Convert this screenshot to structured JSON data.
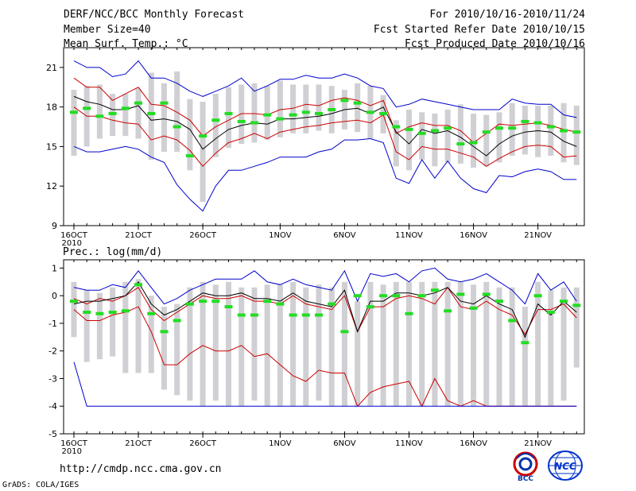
{
  "header": {
    "title": "DERF/NCC/BCC Monthly Forecast",
    "member": "Member Size=40",
    "variable": "Mean Surf. Temp.: °C",
    "period": "For 2010/10/16-2010/11/24",
    "started": "Fcst Started Refer Date 2010/10/15",
    "produced": "Fcst Produced Date 2010/10/16"
  },
  "footer": {
    "url": "http://cmdp.ncc.cma.gov.cn",
    "grads": "GrADS: COLA/IGES",
    "logo_left_text": "BCC",
    "logo_right_text": "NCC"
  },
  "colors": {
    "max_min": "#0000cc",
    "spread": "#cc0000",
    "mean": "#000000",
    "bar": "#d0d0d4",
    "obs": "#22dd22"
  },
  "chart_data": [
    {
      "type": "line",
      "title": "Mean Surf. Temp.: °C",
      "x_tick_labels": [
        "16OCT\n2010",
        "21OCT",
        "26OCT",
        "1NOV",
        "6NOV",
        "11NOV",
        "16NOV",
        "21NOV"
      ],
      "x_tick_days": [
        1,
        6,
        11,
        17,
        22,
        27,
        32,
        37
      ],
      "n_days": 40,
      "ylim": [
        9,
        22.5
      ],
      "yticks": [
        9,
        12,
        15,
        18,
        21
      ],
      "series": [
        {
          "name": "max",
          "values": [
            21.5,
            21.0,
            21.0,
            20.3,
            20.5,
            21.5,
            20.2,
            20.2,
            19.8,
            19.2,
            18.8,
            19.2,
            19.6,
            20.2,
            19.2,
            19.6,
            20.1,
            20.1,
            20.4,
            20.2,
            20.2,
            20.5,
            20.2,
            19.6,
            19.4,
            18.0,
            18.2,
            18.6,
            18.4,
            18.2,
            18.0,
            17.8,
            17.8,
            17.8,
            18.6,
            18.3,
            18.2,
            18.2,
            17.4,
            17.2
          ]
        },
        {
          "name": "upper",
          "values": [
            20.2,
            19.5,
            19.5,
            18.5,
            19.0,
            19.5,
            18.2,
            18.1,
            17.6,
            17.0,
            15.8,
            16.5,
            17.0,
            17.5,
            17.5,
            17.4,
            17.8,
            17.9,
            18.2,
            18.1,
            18.5,
            18.7,
            18.5,
            18.1,
            18.5,
            16.0,
            16.5,
            16.8,
            16.6,
            16.6,
            16.2,
            15.3,
            16.0,
            16.7,
            16.6,
            16.7,
            16.8,
            16.6,
            16.3,
            16.1
          ]
        },
        {
          "name": "mean",
          "values": [
            18.8,
            18.4,
            18.2,
            17.8,
            17.8,
            18.1,
            17.0,
            17.1,
            16.9,
            16.3,
            14.8,
            15.6,
            16.3,
            16.6,
            16.8,
            16.7,
            17.1,
            17.1,
            17.2,
            17.3,
            17.5,
            17.8,
            17.9,
            17.5,
            18.0,
            16.1,
            15.2,
            16.3,
            16.0,
            16.2,
            15.7,
            15.0,
            14.3,
            15.2,
            15.8,
            16.1,
            16.2,
            16.1,
            15.4,
            15.0
          ]
        },
        {
          "name": "lower",
          "values": [
            18.0,
            17.3,
            17.3,
            17.0,
            16.8,
            16.7,
            15.5,
            15.8,
            15.5,
            14.7,
            13.5,
            14.5,
            15.3,
            15.6,
            16.0,
            15.6,
            16.1,
            16.3,
            16.5,
            16.6,
            16.8,
            16.9,
            17.0,
            16.8,
            17.4,
            14.6,
            14.0,
            15.0,
            14.8,
            14.8,
            14.5,
            14.2,
            13.5,
            14.1,
            14.6,
            15.0,
            15.1,
            15.0,
            14.2,
            14.3
          ]
        },
        {
          "name": "min",
          "values": [
            15.0,
            14.6,
            14.6,
            14.8,
            15.0,
            14.8,
            14.2,
            13.8,
            12.1,
            11.0,
            10.1,
            12.0,
            13.2,
            13.2,
            13.5,
            13.8,
            14.2,
            14.2,
            14.2,
            14.6,
            14.8,
            15.5,
            15.5,
            15.6,
            15.3,
            12.6,
            12.2,
            14.0,
            12.6,
            13.9,
            12.6,
            11.8,
            11.5,
            12.8,
            12.7,
            13.1,
            13.3,
            13.1,
            12.5,
            12.5
          ]
        }
      ],
      "obs": [
        17.6,
        17.9,
        17.3,
        17.5,
        17.9,
        18.3,
        17.5,
        18.3,
        16.5,
        14.3,
        15.8,
        17.0,
        17.5,
        16.9,
        16.8,
        17.4,
        17.1,
        17.4,
        17.6,
        17.5,
        17.8,
        18.5,
        18.3,
        17.6,
        17.5,
        16.5,
        16.3,
        16.0,
        16.2,
        16.4,
        15.2,
        15.3,
        16.1,
        16.4,
        16.4,
        16.9,
        16.8,
        16.5,
        16.2,
        16.1
      ],
      "bars_low": [
        14.3,
        15.0,
        15.6,
        15.8,
        15.8,
        15.6,
        14.0,
        14.6,
        14.6,
        13.2,
        10.8,
        14.2,
        14.9,
        15.2,
        15.3,
        15.5,
        15.7,
        16.0,
        16.0,
        16.2,
        16.0,
        16.3,
        16.1,
        15.6,
        16.0,
        13.5,
        13.2,
        14.0,
        13.5,
        13.8,
        13.7,
        13.4,
        13.5,
        13.8,
        14.3,
        14.4,
        14.2,
        14.3,
        13.8,
        13.6
      ],
      "bars_high": [
        19.3,
        19.6,
        19.7,
        19.0,
        19.0,
        19.4,
        20.6,
        19.8,
        20.7,
        18.6,
        18.4,
        19.0,
        19.5,
        19.7,
        19.8,
        19.6,
        20.0,
        19.7,
        19.7,
        19.7,
        19.6,
        19.3,
        19.8,
        19.6,
        18.9,
        17.0,
        17.8,
        17.6,
        17.5,
        17.8,
        18.2,
        17.5,
        17.4,
        17.6,
        18.3,
        18.1,
        18.1,
        18.1,
        18.3,
        18.1
      ]
    },
    {
      "type": "line",
      "title": "Prec.: log(mm/d)",
      "x_tick_labels": [
        "16OCT\n2010",
        "21OCT",
        "26OCT",
        "1NOV",
        "6NOV",
        "11NOV",
        "16NOV",
        "21NOV"
      ],
      "x_tick_days": [
        1,
        6,
        11,
        17,
        22,
        27,
        32,
        37
      ],
      "n_days": 40,
      "ylim": [
        -5,
        1.3
      ],
      "yticks": [
        -5,
        -4,
        -3,
        -2,
        -1,
        0,
        1
      ],
      "series": [
        {
          "name": "max",
          "values": [
            0.3,
            0.2,
            0.2,
            0.4,
            0.3,
            0.9,
            0.3,
            -0.3,
            -0.1,
            0.2,
            0.4,
            0.6,
            0.6,
            0.6,
            0.9,
            0.5,
            0.4,
            0.6,
            0.4,
            0.3,
            0.2,
            0.9,
            -0.2,
            0.8,
            0.7,
            0.8,
            0.5,
            0.9,
            1.0,
            0.6,
            0.5,
            0.6,
            0.8,
            0.5,
            0.2,
            -0.3,
            0.8,
            0.2,
            0.5,
            -0.2
          ]
        },
        {
          "name": "upper",
          "values": [
            -0.1,
            -0.3,
            -0.1,
            -0.2,
            0.0,
            0.3,
            -0.5,
            -0.9,
            -0.6,
            -0.3,
            0.0,
            -0.1,
            -0.1,
            0.0,
            -0.2,
            -0.2,
            -0.3,
            0.0,
            -0.3,
            -0.4,
            -0.5,
            0.0,
            -1.3,
            -0.4,
            -0.4,
            -0.1,
            0.0,
            -0.1,
            -0.3,
            0.3,
            -0.4,
            -0.5,
            -0.2,
            -0.5,
            -0.7,
            -1.4,
            -0.5,
            -0.5,
            -0.3,
            -0.8
          ]
        },
        {
          "name": "mean",
          "values": [
            -0.3,
            -0.2,
            -0.2,
            -0.1,
            0.0,
            0.5,
            -0.3,
            -0.7,
            -0.5,
            -0.2,
            0.1,
            0.0,
            0.0,
            0.1,
            -0.1,
            -0.1,
            -0.2,
            0.1,
            -0.2,
            -0.3,
            -0.4,
            0.2,
            -1.3,
            -0.2,
            -0.2,
            0.1,
            0.1,
            0.0,
            0.1,
            0.3,
            -0.2,
            -0.3,
            0.0,
            -0.3,
            -0.5,
            -1.5,
            -0.3,
            -0.7,
            -0.2,
            -0.6
          ]
        },
        {
          "name": "lower",
          "values": [
            -0.5,
            -0.9,
            -0.9,
            -0.7,
            -0.6,
            -0.4,
            -1.3,
            -2.5,
            -2.5,
            -2.1,
            -1.8,
            -2.0,
            -2.0,
            -1.8,
            -2.2,
            -2.1,
            -2.5,
            -2.9,
            -3.1,
            -2.7,
            -2.8,
            -2.8,
            -4.0,
            -3.5,
            -3.3,
            -3.2,
            -3.1,
            -4.0,
            -3.0,
            -3.8,
            -4.0,
            -3.8,
            -4.0,
            -4.0,
            -4.0,
            -4.0,
            -4.0,
            -4.0,
            -4.0,
            -4.0
          ]
        },
        {
          "name": "min",
          "values": [
            -2.4,
            -4.0,
            -4.0,
            -4.0,
            -4.0,
            -4.0,
            -4.0,
            -4.0,
            -4.0,
            -4.0,
            -4.0,
            -4.0,
            -4.0,
            -4.0,
            -4.0,
            -4.0,
            -4.0,
            -4.0,
            -4.0,
            -4.0,
            -4.0,
            -4.0,
            -4.0,
            -4.0,
            -4.0,
            -4.0,
            -4.0,
            -4.0,
            -4.0,
            -4.0,
            -4.0,
            -4.0,
            -4.0,
            -4.0,
            -4.0,
            -4.0,
            -4.0,
            -4.0,
            -4.0,
            -4.0
          ]
        }
      ],
      "obs": [
        -0.2,
        -0.6,
        -0.65,
        -0.6,
        -0.55,
        0.4,
        -0.65,
        -1.3,
        -0.9,
        -0.3,
        -0.2,
        -0.2,
        -0.4,
        -0.7,
        -0.7,
        -0.2,
        -0.3,
        -0.7,
        -0.7,
        -0.7,
        -0.3,
        -1.3,
        0.0,
        -0.4,
        0.0,
        0.0,
        -0.65,
        0.0,
        0.2,
        -0.55,
        0.05,
        -0.45,
        0.05,
        -0.2,
        -0.9,
        -1.7,
        0.0,
        -0.6,
        -0.2,
        -0.35
      ],
      "bars_low": [
        -1.5,
        -2.4,
        -2.3,
        -2.2,
        -2.8,
        -2.8,
        -2.8,
        -3.4,
        -3.6,
        -3.8,
        -4.0,
        -3.8,
        -4.0,
        -4.0,
        -3.8,
        -4.0,
        -4.0,
        -4.0,
        -4.0,
        -3.8,
        -4.0,
        -4.0,
        -4.0,
        -4.0,
        -4.0,
        -4.0,
        -4.0,
        -4.0,
        -4.0,
        -4.0,
        -4.0,
        -4.0,
        -4.0,
        -4.0,
        -4.0,
        -4.0,
        -4.0,
        -4.0,
        -3.8,
        -2.6
      ],
      "bars_high": [
        0.5,
        0.2,
        0.1,
        0.3,
        0.5,
        0.6,
        0.0,
        -0.4,
        -0.3,
        0.3,
        0.5,
        0.4,
        0.5,
        0.3,
        0.3,
        0.4,
        0.4,
        0.5,
        0.3,
        0.4,
        0.3,
        0.5,
        -0.2,
        0.5,
        0.4,
        0.5,
        0.5,
        0.5,
        0.5,
        0.5,
        0.5,
        0.4,
        0.5,
        0.3,
        0.3,
        -0.4,
        0.5,
        0.2,
        0.3,
        0.3
      ]
    }
  ]
}
